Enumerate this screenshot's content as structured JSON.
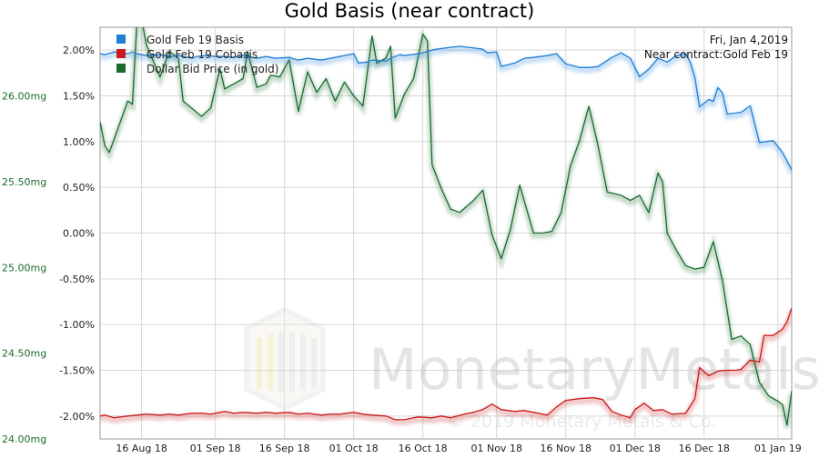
{
  "chart_data": {
    "type": "line",
    "title": "Gold Basis (near contract)",
    "info": {
      "date": "Fri, Jan 4,2019",
      "contract": "Near contract:Gold Feb 19"
    },
    "watermark": {
      "name": "MonetaryMetals",
      "copyright": "© 2019 Monetary Metals & Co."
    },
    "x_range": [
      "2018-08-07",
      "2019-01-04"
    ],
    "x_ticks": [
      {
        "date": "2018-08-16",
        "label": "16 Aug 18"
      },
      {
        "date": "2018-09-01",
        "label": "01 Sep 18"
      },
      {
        "date": "2018-09-16",
        "label": "16 Sep 18"
      },
      {
        "date": "2018-10-01",
        "label": "01 Oct 18"
      },
      {
        "date": "2018-10-16",
        "label": "16 Oct 18"
      },
      {
        "date": "2018-11-01",
        "label": "01 Nov 18"
      },
      {
        "date": "2018-11-16",
        "label": "16 Nov 18"
      },
      {
        "date": "2018-12-01",
        "label": "01 Dec 18"
      },
      {
        "date": "2018-12-16",
        "label": "16 Dec 18"
      },
      {
        "date": "2019-01-01",
        "label": "01 Jan 19"
      }
    ],
    "y_right": {
      "unit": "%",
      "range": [
        -2.25,
        2.25
      ],
      "ticks": [
        {
          "value": 2.0,
          "label": "2.00%"
        },
        {
          "value": 1.5,
          "label": "1.50%"
        },
        {
          "value": 1.0,
          "label": "1.00%"
        },
        {
          "value": 0.5,
          "label": "0.50%"
        },
        {
          "value": 0.0,
          "label": "0.00%"
        },
        {
          "value": -0.5,
          "label": "-0.50%"
        },
        {
          "value": -1.0,
          "label": "-1.00%"
        },
        {
          "value": -1.5,
          "label": "-1.50%"
        },
        {
          "value": -2.0,
          "label": "-2.00%"
        }
      ]
    },
    "y_left": {
      "unit": "mg",
      "range": [
        24.0,
        26.4
      ],
      "color": "#1b6b2f",
      "ticks": [
        {
          "value": 26.0,
          "label": "26.00mg"
        },
        {
          "value": 25.5,
          "label": "25.50mg"
        },
        {
          "value": 25.0,
          "label": "25.00mg"
        },
        {
          "value": 24.5,
          "label": "24.50mg"
        },
        {
          "value": 24.0,
          "label": "24.00mg"
        }
      ]
    },
    "legend_position": "top-left",
    "grid": true,
    "series": [
      {
        "name": "Gold Feb 19 Basis",
        "axis": "right",
        "color": "#1f7fd6",
        "points": [
          [
            "2018-08-07",
            1.96
          ],
          [
            "2018-08-08",
            1.95
          ],
          [
            "2018-08-10",
            1.98
          ],
          [
            "2018-08-13",
            1.96
          ],
          [
            "2018-08-14",
            1.98
          ],
          [
            "2018-08-15",
            1.96
          ],
          [
            "2018-08-17",
            1.94
          ],
          [
            "2018-08-20",
            1.95
          ],
          [
            "2018-08-22",
            1.93
          ],
          [
            "2018-08-24",
            1.94
          ],
          [
            "2018-08-27",
            1.91
          ],
          [
            "2018-08-28",
            1.93
          ],
          [
            "2018-08-30",
            1.94
          ],
          [
            "2018-09-01",
            1.93
          ],
          [
            "2018-09-03",
            1.93
          ],
          [
            "2018-09-05",
            1.92
          ],
          [
            "2018-09-07",
            1.94
          ],
          [
            "2018-09-10",
            1.91
          ],
          [
            "2018-09-12",
            1.93
          ],
          [
            "2018-09-14",
            1.91
          ],
          [
            "2018-09-17",
            1.92
          ],
          [
            "2018-09-19",
            1.89
          ],
          [
            "2018-09-21",
            1.91
          ],
          [
            "2018-09-24",
            1.89
          ],
          [
            "2018-09-26",
            1.91
          ],
          [
            "2018-09-28",
            1.93
          ],
          [
            "2018-10-01",
            1.96
          ],
          [
            "2018-10-02",
            1.86
          ],
          [
            "2018-10-04",
            1.87
          ],
          [
            "2018-10-05",
            1.89
          ],
          [
            "2018-10-08",
            1.88
          ],
          [
            "2018-10-09",
            1.91
          ],
          [
            "2018-10-11",
            1.95
          ],
          [
            "2018-10-12",
            1.94
          ],
          [
            "2018-10-15",
            1.96
          ],
          [
            "2018-10-16",
            1.97
          ],
          [
            "2018-10-18",
            2.0
          ],
          [
            "2018-10-19",
            2.01
          ],
          [
            "2018-10-22",
            2.03
          ],
          [
            "2018-10-24",
            2.04
          ],
          [
            "2018-10-26",
            2.03
          ],
          [
            "2018-10-29",
            2.01
          ],
          [
            "2018-10-30",
            1.97
          ],
          [
            "2018-11-01",
            1.98
          ],
          [
            "2018-11-02",
            1.82
          ],
          [
            "2018-11-05",
            1.86
          ],
          [
            "2018-11-07",
            1.91
          ],
          [
            "2018-11-09",
            1.92
          ],
          [
            "2018-11-12",
            1.94
          ],
          [
            "2018-11-14",
            1.96
          ],
          [
            "2018-11-16",
            1.85
          ],
          [
            "2018-11-19",
            1.81
          ],
          [
            "2018-11-21",
            1.81
          ],
          [
            "2018-11-23",
            1.82
          ],
          [
            "2018-11-26",
            1.92
          ],
          [
            "2018-11-28",
            1.97
          ],
          [
            "2018-11-30",
            1.91
          ],
          [
            "2018-12-02",
            1.71
          ],
          [
            "2018-12-04",
            1.79
          ],
          [
            "2018-12-06",
            1.91
          ],
          [
            "2018-12-08",
            1.87
          ],
          [
            "2018-12-10",
            1.94
          ],
          [
            "2018-12-12",
            1.96
          ],
          [
            "2018-12-13",
            1.87
          ],
          [
            "2018-12-14",
            1.7
          ],
          [
            "2018-12-15",
            1.38
          ],
          [
            "2018-12-17",
            1.46
          ],
          [
            "2018-12-18",
            1.44
          ],
          [
            "2018-12-19",
            1.59
          ],
          [
            "2018-12-20",
            1.53
          ],
          [
            "2018-12-21",
            1.3
          ],
          [
            "2018-12-24",
            1.32
          ],
          [
            "2018-12-26",
            1.39
          ],
          [
            "2018-12-28",
            0.99
          ],
          [
            "2018-12-31",
            1.01
          ],
          [
            "2019-01-02",
            0.88
          ],
          [
            "2019-01-04",
            0.69
          ]
        ]
      },
      {
        "name": "Gold Feb 19 Cobasis",
        "axis": "right",
        "color": "#cc1b1b",
        "points": [
          [
            "2018-08-07",
            -2.0
          ],
          [
            "2018-08-08",
            -1.99
          ],
          [
            "2018-08-10",
            -2.02
          ],
          [
            "2018-08-13",
            -2.0
          ],
          [
            "2018-08-15",
            -1.99
          ],
          [
            "2018-08-17",
            -1.98
          ],
          [
            "2018-08-20",
            -1.99
          ],
          [
            "2018-08-22",
            -1.98
          ],
          [
            "2018-08-24",
            -1.99
          ],
          [
            "2018-08-27",
            -1.97
          ],
          [
            "2018-08-29",
            -1.97
          ],
          [
            "2018-08-31",
            -1.98
          ],
          [
            "2018-09-03",
            -1.95
          ],
          [
            "2018-09-05",
            -1.97
          ],
          [
            "2018-09-07",
            -1.96
          ],
          [
            "2018-09-10",
            -1.97
          ],
          [
            "2018-09-12",
            -1.96
          ],
          [
            "2018-09-14",
            -1.97
          ],
          [
            "2018-09-17",
            -1.96
          ],
          [
            "2018-09-19",
            -1.98
          ],
          [
            "2018-09-21",
            -1.97
          ],
          [
            "2018-09-24",
            -1.99
          ],
          [
            "2018-09-26",
            -1.98
          ],
          [
            "2018-09-28",
            -1.98
          ],
          [
            "2018-10-01",
            -1.96
          ],
          [
            "2018-10-03",
            -1.98
          ],
          [
            "2018-10-05",
            -1.99
          ],
          [
            "2018-10-08",
            -2.0
          ],
          [
            "2018-10-10",
            -2.04
          ],
          [
            "2018-10-12",
            -2.04
          ],
          [
            "2018-10-14",
            -2.02
          ],
          [
            "2018-10-15",
            -2.01
          ],
          [
            "2018-10-18",
            -2.02
          ],
          [
            "2018-10-20",
            -2.0
          ],
          [
            "2018-10-22",
            -2.02
          ],
          [
            "2018-10-25",
            -1.98
          ],
          [
            "2018-10-27",
            -1.96
          ],
          [
            "2018-10-29",
            -1.93
          ],
          [
            "2018-10-31",
            -1.87
          ],
          [
            "2018-11-02",
            -1.93
          ],
          [
            "2018-11-05",
            -1.95
          ],
          [
            "2018-11-07",
            -1.94
          ],
          [
            "2018-11-10",
            -1.97
          ],
          [
            "2018-11-12",
            -1.99
          ],
          [
            "2018-11-14",
            -1.9
          ],
          [
            "2018-11-16",
            -1.83
          ],
          [
            "2018-11-19",
            -1.81
          ],
          [
            "2018-11-22",
            -1.8
          ],
          [
            "2018-11-24",
            -1.82
          ],
          [
            "2018-11-26",
            -1.95
          ],
          [
            "2018-11-28",
            -1.99
          ],
          [
            "2018-11-30",
            -2.02
          ],
          [
            "2018-12-01",
            -1.93
          ],
          [
            "2018-12-03",
            -1.86
          ],
          [
            "2018-12-05",
            -1.94
          ],
          [
            "2018-12-07",
            -1.93
          ],
          [
            "2018-12-09",
            -1.98
          ],
          [
            "2018-12-12",
            -1.97
          ],
          [
            "2018-12-14",
            -1.81
          ],
          [
            "2018-12-15",
            -1.47
          ],
          [
            "2018-12-17",
            -1.56
          ],
          [
            "2018-12-19",
            -1.51
          ],
          [
            "2018-12-21",
            -1.5
          ],
          [
            "2018-12-23",
            -1.5
          ],
          [
            "2018-12-24",
            -1.49
          ],
          [
            "2018-12-26",
            -1.39
          ],
          [
            "2018-12-28",
            -1.41
          ],
          [
            "2018-12-29",
            -1.12
          ],
          [
            "2018-12-31",
            -1.12
          ],
          [
            "2019-01-02",
            -1.05
          ],
          [
            "2019-01-03",
            -0.97
          ],
          [
            "2019-01-04",
            -0.82
          ]
        ]
      },
      {
        "name": "Dollar Bid Price (in gold)",
        "axis": "left",
        "color": "#1a6b30",
        "points": [
          [
            "2018-08-07",
            25.85
          ],
          [
            "2018-08-08",
            25.71
          ],
          [
            "2018-08-09",
            25.67
          ],
          [
            "2018-08-13",
            25.97
          ],
          [
            "2018-08-14",
            25.95
          ],
          [
            "2018-08-15",
            26.43
          ],
          [
            "2018-08-16",
            26.45
          ],
          [
            "2018-08-17",
            26.3
          ],
          [
            "2018-08-20",
            26.11
          ],
          [
            "2018-08-22",
            26.26
          ],
          [
            "2018-08-24",
            26.22
          ],
          [
            "2018-08-25",
            25.97
          ],
          [
            "2018-08-29",
            25.88
          ],
          [
            "2018-08-31",
            25.93
          ],
          [
            "2018-09-02",
            26.16
          ],
          [
            "2018-09-03",
            26.04
          ],
          [
            "2018-09-05",
            26.07
          ],
          [
            "2018-09-07",
            26.1
          ],
          [
            "2018-09-08",
            26.26
          ],
          [
            "2018-09-10",
            26.05
          ],
          [
            "2018-09-12",
            26.07
          ],
          [
            "2018-09-13",
            26.12
          ],
          [
            "2018-09-15",
            26.11
          ],
          [
            "2018-09-17",
            26.21
          ],
          [
            "2018-09-19",
            25.91
          ],
          [
            "2018-09-21",
            26.14
          ],
          [
            "2018-09-23",
            26.02
          ],
          [
            "2018-09-25",
            26.1
          ],
          [
            "2018-09-27",
            25.97
          ],
          [
            "2018-09-29",
            26.08
          ],
          [
            "2018-10-01",
            26.0
          ],
          [
            "2018-10-03",
            25.94
          ],
          [
            "2018-10-05",
            26.35
          ],
          [
            "2018-10-06",
            26.19
          ],
          [
            "2018-10-08",
            26.22
          ],
          [
            "2018-10-09",
            26.29
          ],
          [
            "2018-10-10",
            25.87
          ],
          [
            "2018-10-12",
            26.01
          ],
          [
            "2018-10-14",
            26.1
          ],
          [
            "2018-10-16",
            26.36
          ],
          [
            "2018-10-17",
            26.32
          ],
          [
            "2018-10-18",
            25.6
          ],
          [
            "2018-10-20",
            25.46
          ],
          [
            "2018-10-22",
            25.34
          ],
          [
            "2018-10-24",
            25.32
          ],
          [
            "2018-10-27",
            25.39
          ],
          [
            "2018-10-29",
            25.45
          ],
          [
            "2018-10-31",
            25.19
          ],
          [
            "2018-11-02",
            25.05
          ],
          [
            "2018-11-04",
            25.22
          ],
          [
            "2018-11-06",
            25.48
          ],
          [
            "2018-11-09",
            25.2
          ],
          [
            "2018-11-11",
            25.2
          ],
          [
            "2018-11-13",
            25.21
          ],
          [
            "2018-11-15",
            25.32
          ],
          [
            "2018-11-17",
            25.59
          ],
          [
            "2018-11-19",
            25.74
          ],
          [
            "2018-11-21",
            25.94
          ],
          [
            "2018-11-23",
            25.71
          ],
          [
            "2018-11-25",
            25.44
          ],
          [
            "2018-11-28",
            25.42
          ],
          [
            "2018-11-30",
            25.39
          ],
          [
            "2018-12-02",
            25.42
          ],
          [
            "2018-12-04",
            25.32
          ],
          [
            "2018-12-06",
            25.55
          ],
          [
            "2018-12-07",
            25.5
          ],
          [
            "2018-12-08",
            25.2
          ],
          [
            "2018-12-10",
            25.1
          ],
          [
            "2018-12-12",
            25.01
          ],
          [
            "2018-12-14",
            24.99
          ],
          [
            "2018-12-16",
            25.0
          ],
          [
            "2018-12-18",
            25.15
          ],
          [
            "2018-12-20",
            24.92
          ],
          [
            "2018-12-22",
            24.58
          ],
          [
            "2018-12-24",
            24.6
          ],
          [
            "2018-12-26",
            24.55
          ],
          [
            "2018-12-28",
            24.33
          ],
          [
            "2018-12-30",
            24.25
          ],
          [
            "2019-01-01",
            24.22
          ],
          [
            "2019-01-02",
            24.2
          ],
          [
            "2019-01-03",
            24.08
          ],
          [
            "2019-01-04",
            24.28
          ]
        ]
      }
    ]
  }
}
